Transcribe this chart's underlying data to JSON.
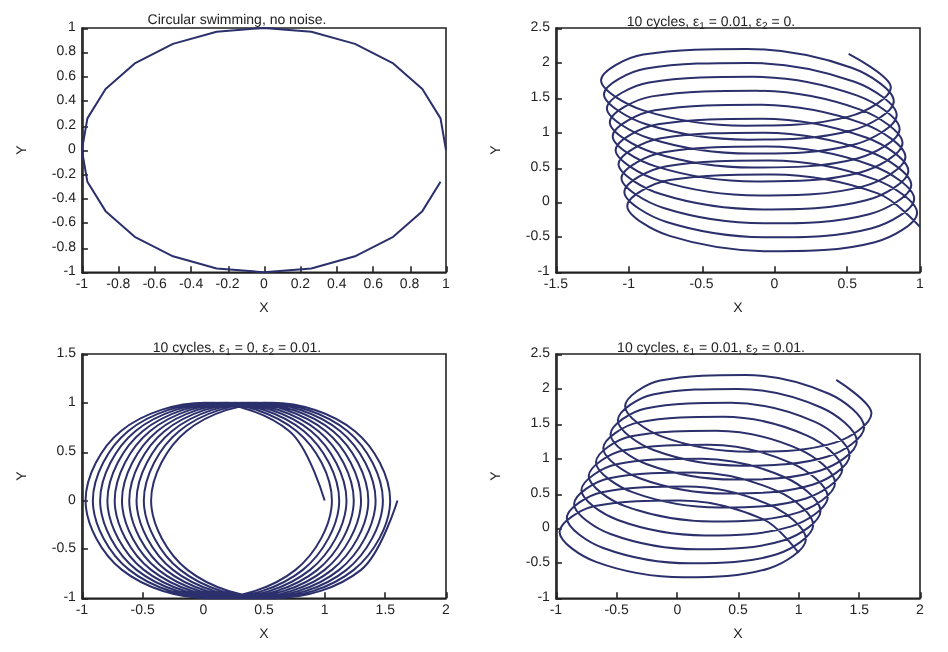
{
  "chart_data": [
    {
      "type": "line",
      "title": "Circular swimming, no noise.",
      "xlabel": "X",
      "ylabel": "Y",
      "color": "#2b2f6b",
      "xlim": [
        -1,
        1
      ],
      "ylim": [
        -1,
        1
      ],
      "xticks": [
        -1,
        -0.8,
        -0.6,
        -0.4,
        -0.2,
        0,
        0.2,
        0.4,
        0.6,
        0.8,
        1
      ],
      "yticks": [
        -1,
        -0.8,
        -0.6,
        -0.4,
        -0.2,
        0,
        0.2,
        0.4,
        0.6,
        0.8,
        1
      ],
      "x": [
        1,
        0.97,
        0.87,
        0.71,
        0.5,
        0.26,
        0,
        -0.26,
        -0.5,
        -0.71,
        -0.87,
        -0.97,
        -1,
        -0.97,
        -0.87,
        -0.71,
        -0.5,
        -0.26,
        0,
        0.26,
        0.5,
        0.71,
        0.87,
        0.97
      ],
      "values": [
        0,
        0.26,
        0.5,
        0.71,
        0.87,
        0.97,
        1,
        0.97,
        0.87,
        0.71,
        0.5,
        0.26,
        0,
        -0.26,
        -0.5,
        -0.71,
        -0.87,
        -0.97,
        -1,
        -0.97,
        -0.87,
        -0.71,
        -0.5,
        -0.26
      ]
    },
    {
      "type": "line",
      "title": "10 cycles, ε$_{1}$ = 0.01, ε$_{2}$ = 0.",
      "xlabel": "X",
      "ylabel": "Y",
      "color": "#2b2f6b",
      "xlim": [
        -1.5,
        1
      ],
      "ylim": [
        -1,
        2.5
      ],
      "xticks": [
        -1.5,
        -1,
        -0.5,
        0,
        0.5,
        1
      ],
      "yticks": [
        -1,
        -0.5,
        0,
        0.5,
        1,
        1.5,
        2,
        2.5
      ],
      "x": [
        1,
        0.71,
        -0.01,
        -0.72,
        -1.01,
        -0.72,
        -0.02,
        0.69,
        0.98,
        0.69,
        -0.03,
        -0.74,
        -1.03,
        -0.74,
        -0.04,
        0.67,
        0.96,
        0.67,
        -0.05,
        -0.76,
        -1.05,
        -0.76,
        -0.06,
        0.65,
        0.94,
        0.65,
        -0.07,
        -0.78,
        -1.07,
        -0.78,
        -0.08,
        0.63,
        0.92,
        0.63,
        -0.09,
        -0.8,
        -1.09,
        -0.8,
        -0.1,
        0.61,
        0.9,
        0.61,
        -0.11,
        -0.82,
        -1.11,
        -0.82,
        -0.12,
        0.59,
        0.88,
        0.59,
        -0.13,
        -0.84,
        -1.13,
        -0.84,
        -0.14,
        0.57,
        0.86,
        0.57,
        -0.15,
        -0.86,
        -1.15,
        -0.86,
        -0.16,
        0.55,
        0.84,
        0.55,
        -0.17,
        -0.88,
        -1.17,
        -0.88,
        -0.18,
        0.53,
        0.82,
        0.53,
        -0.19,
        -0.9,
        -1.19,
        -0.9,
        -0.2,
        0.51,
        0.8,
        0.51
      ],
      "values": [
        -0.35,
        0.13,
        0.4,
        0.32,
        -0.05,
        -0.48,
        -0.7,
        -0.57,
        -0.15,
        0.33,
        0.6,
        0.52,
        0.15,
        -0.28,
        -0.5,
        -0.37,
        0.05,
        0.53,
        0.8,
        0.72,
        0.35,
        -0.08,
        -0.3,
        -0.17,
        0.25,
        0.73,
        1,
        0.92,
        0.55,
        0.12,
        -0.1,
        0.03,
        0.45,
        0.93,
        1.2,
        1.12,
        0.75,
        0.32,
        0.1,
        0.23,
        0.65,
        1.13,
        1.4,
        1.32,
        0.95,
        0.52,
        0.3,
        0.43,
        0.85,
        1.33,
        1.6,
        1.52,
        1.15,
        0.72,
        0.5,
        0.63,
        1.05,
        1.53,
        1.8,
        1.72,
        1.35,
        0.92,
        0.7,
        0.83,
        1.25,
        1.73,
        2,
        1.92,
        1.55,
        1.12,
        0.9,
        1.03,
        1.45,
        1.93,
        2.2,
        2.12,
        1.75,
        1.32,
        1.1,
        1.23,
        1.65,
        2.13
      ]
    },
    {
      "type": "line",
      "title": "10 cycles, ε$_{1}$ = 0, ε$_{2}$ = 0.01.",
      "xlabel": "X",
      "ylabel": "Y",
      "color": "#2b2f6b",
      "xlim": [
        -1,
        2
      ],
      "ylim": [
        -1,
        1.5
      ],
      "xticks": [
        -1,
        -0.5,
        0,
        0.5,
        1,
        1.5,
        2
      ],
      "yticks": [
        -1,
        -0.5,
        0,
        0.5,
        1,
        1.5
      ],
      "x": [
        1,
        0.71,
        0.02,
        -0.68,
        -0.97,
        -0.67,
        0.05,
        0.76,
        1.06,
        0.77,
        0.08,
        -0.62,
        -0.91,
        -0.61,
        0.11,
        0.82,
        1.12,
        0.83,
        0.14,
        -0.56,
        -0.85,
        -0.55,
        0.17,
        0.88,
        1.18,
        0.89,
        0.2,
        -0.5,
        -0.79,
        -0.49,
        0.23,
        0.94,
        1.24,
        0.95,
        0.26,
        -0.44,
        -0.73,
        -0.43,
        0.29,
        1,
        1.3,
        1.01,
        0.32,
        -0.38,
        -0.67,
        -0.37,
        0.35,
        1.06,
        1.36,
        1.07,
        0.38,
        -0.32,
        -0.61,
        -0.31,
        0.41,
        1.12,
        1.42,
        1.13,
        0.44,
        -0.26,
        -0.55,
        -0.25,
        0.47,
        1.18,
        1.48,
        1.19,
        0.5,
        -0.2,
        -0.49,
        -0.19,
        0.53,
        1.24,
        1.54,
        1.25,
        0.56,
        -0.14,
        -0.43,
        -0.13,
        0.59,
        1.3,
        1.6
      ],
      "values": [
        0,
        0.71,
        1,
        0.71,
        0,
        -0.71,
        -1,
        -0.71,
        0,
        0.71,
        1,
        0.71,
        0,
        -0.71,
        -1,
        -0.71,
        0,
        0.71,
        1,
        0.71,
        0,
        -0.71,
        -1,
        -0.71,
        0,
        0.71,
        1,
        0.71,
        0,
        -0.71,
        -1,
        -0.71,
        0,
        0.71,
        1,
        0.71,
        0,
        -0.71,
        -1,
        -0.71,
        0,
        0.71,
        1,
        0.71,
        0,
        -0.71,
        -1,
        -0.71,
        0,
        0.71,
        1,
        0.71,
        0,
        -0.71,
        -1,
        -0.71,
        0,
        0.71,
        1,
        0.71,
        0,
        -0.71,
        -1,
        -0.71,
        0,
        0.71,
        1,
        0.71,
        0,
        -0.71,
        -1,
        -0.71,
        0,
        0.71,
        1,
        0.71,
        0,
        -0.71,
        -1,
        -0.71,
        0
      ]
    },
    {
      "type": "line",
      "title": "10 cycles, ε$_{1}$ = 0.01, ε$_{2}$ = 0.01.",
      "xlabel": "X",
      "ylabel": "Y",
      "color": "#2b2f6b",
      "xlim": [
        -1,
        2
      ],
      "ylim": [
        -1,
        2.5
      ],
      "xticks": [
        -1,
        -0.5,
        0,
        0.5,
        1,
        1.5,
        2
      ],
      "yticks": [
        -1,
        -0.5,
        0,
        0.5,
        1,
        1.5,
        2,
        2.5
      ],
      "x": [
        1,
        0.71,
        0.02,
        -0.68,
        -0.97,
        -0.67,
        0.05,
        0.76,
        1.06,
        0.77,
        0.08,
        -0.62,
        -0.91,
        -0.61,
        0.11,
        0.82,
        1.12,
        0.83,
        0.14,
        -0.56,
        -0.85,
        -0.55,
        0.17,
        0.88,
        1.18,
        0.89,
        0.2,
        -0.5,
        -0.79,
        -0.49,
        0.23,
        0.94,
        1.24,
        0.95,
        0.26,
        -0.44,
        -0.73,
        -0.43,
        0.29,
        1,
        1.3,
        1.01,
        0.32,
        -0.38,
        -0.67,
        -0.37,
        0.35,
        1.06,
        1.36,
        1.07,
        0.38,
        -0.32,
        -0.61,
        -0.31,
        0.41,
        1.12,
        1.42,
        1.13,
        0.44,
        -0.26,
        -0.55,
        -0.25,
        0.47,
        1.18,
        1.48,
        1.19,
        0.5,
        -0.2,
        -0.49,
        -0.19,
        0.53,
        1.24,
        1.54,
        1.25,
        0.56,
        -0.14,
        -0.43,
        -0.13,
        0.59,
        1.3,
        1.6,
        1.31
      ],
      "values": [
        -0.35,
        0.13,
        0.4,
        0.32,
        -0.05,
        -0.48,
        -0.7,
        -0.57,
        -0.15,
        0.33,
        0.6,
        0.52,
        0.15,
        -0.28,
        -0.5,
        -0.37,
        0.05,
        0.53,
        0.8,
        0.72,
        0.35,
        -0.08,
        -0.3,
        -0.17,
        0.25,
        0.73,
        1,
        0.92,
        0.55,
        0.12,
        -0.1,
        0.03,
        0.45,
        0.93,
        1.2,
        1.12,
        0.75,
        0.32,
        0.1,
        0.23,
        0.65,
        1.13,
        1.4,
        1.32,
        0.95,
        0.52,
        0.3,
        0.43,
        0.85,
        1.33,
        1.6,
        1.52,
        1.15,
        0.72,
        0.5,
        0.63,
        1.05,
        1.53,
        1.8,
        1.72,
        1.35,
        0.92,
        0.7,
        0.83,
        1.25,
        1.73,
        2,
        1.92,
        1.55,
        1.12,
        0.9,
        1.03,
        1.45,
        1.93,
        2.2,
        2.12,
        1.75,
        1.32,
        1.1,
        1.23,
        1.65,
        2.13
      ]
    }
  ]
}
